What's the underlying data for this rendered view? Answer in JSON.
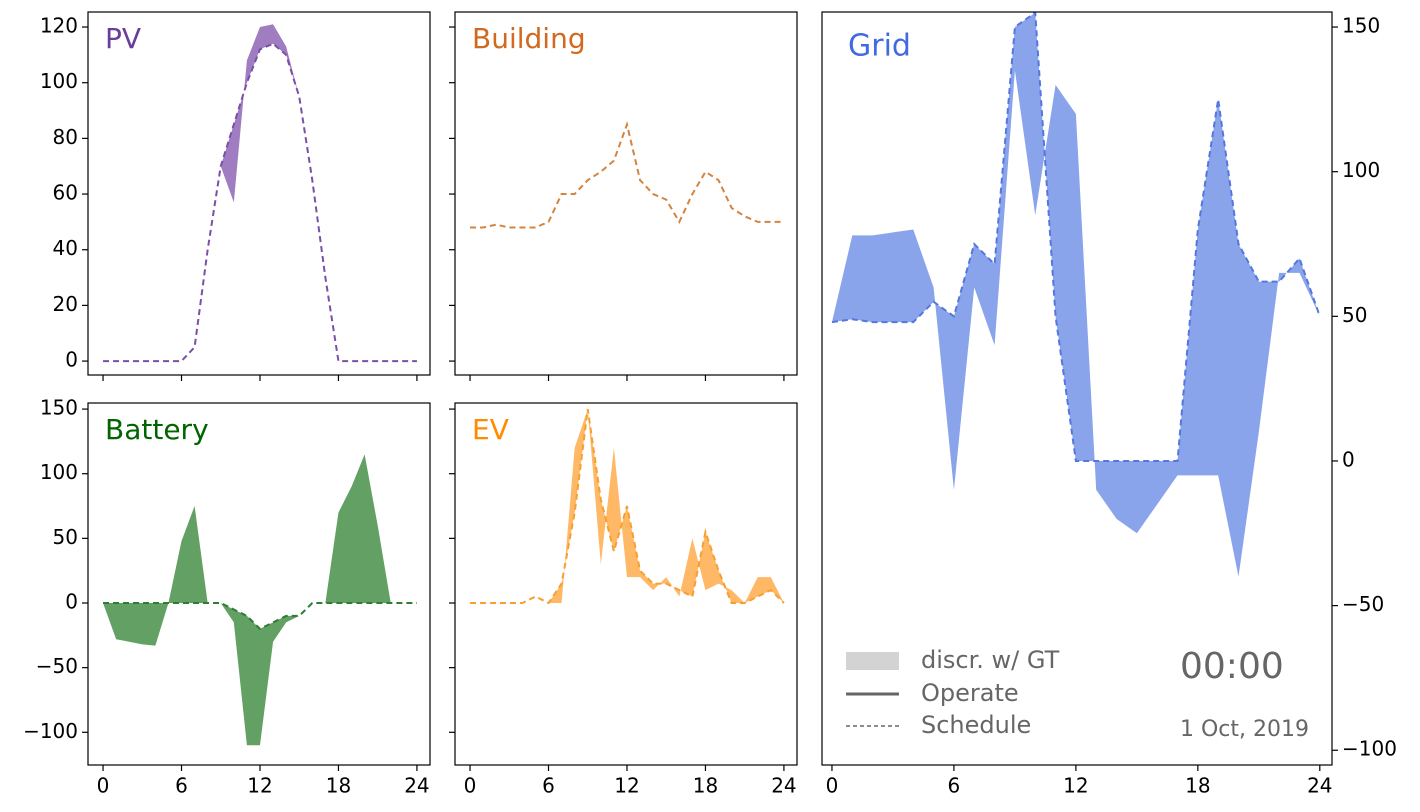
{
  "chart_data": [
    {
      "type": "band-line",
      "title": "PV",
      "title_color": "#6a3d9a",
      "line_color": "#7b4fa8",
      "fill_color": "#a07cc0",
      "x": [
        0,
        1,
        2,
        3,
        4,
        5,
        6,
        7,
        8,
        9,
        10,
        11,
        12,
        13,
        14,
        15,
        16,
        17,
        18,
        19,
        20,
        21,
        22,
        23,
        24
      ],
      "schedule": [
        0,
        0,
        0,
        0,
        0,
        0,
        0,
        5,
        40,
        70,
        85,
        100,
        112,
        114,
        110,
        95,
        65,
        30,
        0,
        0,
        0,
        0,
        0,
        0,
        0
      ],
      "ground_truth": [
        0,
        0,
        0,
        0,
        0,
        0,
        0,
        5,
        40,
        70,
        57,
        108,
        120,
        121,
        113,
        95,
        65,
        30,
        0,
        0,
        0,
        0,
        0,
        0,
        0
      ],
      "xlim": [
        -1.15,
        25
      ],
      "xticks": [
        0,
        6,
        12,
        18,
        24
      ],
      "xtick_labels": false,
      "ylim": [
        -5,
        125.4
      ],
      "yticks": [
        0,
        20,
        40,
        60,
        80,
        100,
        120
      ],
      "ytick_labels": true
    },
    {
      "type": "band-line",
      "title": "Building",
      "title_color": "#d2691e",
      "line_color": "#d4843f",
      "fill_color": "#e8b080",
      "x": [
        0,
        1,
        2,
        3,
        4,
        5,
        6,
        7,
        8,
        9,
        10,
        11,
        12,
        13,
        14,
        15,
        16,
        17,
        18,
        19,
        20,
        21,
        22,
        23,
        24
      ],
      "schedule": [
        48,
        48,
        49,
        48,
        48,
        48,
        50,
        60,
        60,
        65,
        68,
        72,
        85,
        65,
        60,
        58,
        50,
        60,
        68,
        65,
        55,
        52,
        50,
        50,
        50
      ],
      "xlim": [
        -1.15,
        25
      ],
      "xticks": [
        0,
        6,
        12,
        18,
        24
      ],
      "xtick_labels": false,
      "ylim": [
        -5,
        125.4
      ],
      "yticks": [
        0,
        20,
        40,
        60,
        80,
        100,
        120
      ],
      "ytick_labels": false
    },
    {
      "type": "band-line",
      "title": "Battery",
      "title_color": "#006400",
      "line_color": "#2e7d32",
      "fill_color": "#63a063",
      "x": [
        0,
        1,
        2,
        3,
        4,
        5,
        6,
        7,
        8,
        9,
        10,
        11,
        12,
        13,
        14,
        15,
        16,
        17,
        18,
        19,
        20,
        21,
        22,
        23,
        24
      ],
      "schedule": [
        0,
        0,
        0,
        0,
        0,
        0,
        0,
        0,
        0,
        0,
        -5,
        -10,
        -20,
        -15,
        -10,
        -10,
        0,
        0,
        0,
        0,
        0,
        0,
        0,
        0,
        0
      ],
      "ground_truth": [
        0,
        -28,
        -30,
        -32,
        -33,
        0,
        48,
        75,
        0,
        0,
        -15,
        -110,
        -110,
        -30,
        -15,
        -10,
        0,
        0,
        70,
        90,
        115,
        60,
        0,
        0,
        0
      ],
      "xlim": [
        -1.15,
        25
      ],
      "xticks": [
        0,
        6,
        12,
        18,
        24
      ],
      "xtick_labels": true,
      "ylim": [
        -125.3,
        154.7
      ],
      "yticks": [
        {
          "value": -100,
          "label": "−100"
        },
        {
          "value": -50,
          "label": "−50"
        },
        0,
        50,
        100,
        150
      ],
      "ytick_labels": true
    },
    {
      "type": "band-line",
      "title": "EV",
      "title_color": "#ff8c00",
      "line_color": "#f5a030",
      "fill_color": "#ffb866",
      "x": [
        0,
        1,
        2,
        3,
        4,
        5,
        6,
        7,
        8,
        9,
        10,
        11,
        12,
        13,
        14,
        15,
        16,
        17,
        18,
        19,
        20,
        21,
        22,
        23,
        24
      ],
      "schedule": [
        0,
        0,
        0,
        0,
        0,
        5,
        0,
        15,
        70,
        150,
        80,
        40,
        75,
        25,
        15,
        15,
        10,
        5,
        55,
        25,
        0,
        0,
        5,
        10,
        0
      ],
      "ground_truth": [
        0,
        0,
        0,
        0,
        0,
        5,
        0,
        0,
        120,
        150,
        30,
        120,
        20,
        20,
        10,
        20,
        5,
        50,
        10,
        15,
        10,
        0,
        20,
        20,
        0
      ],
      "xlim": [
        -1.15,
        25
      ],
      "xticks": [
        0,
        6,
        12,
        18,
        24
      ],
      "xtick_labels": true,
      "ylim": [
        -125.3,
        154.7
      ],
      "yticks": [
        -100,
        -50,
        0,
        50,
        100,
        150
      ],
      "ytick_labels": false
    },
    {
      "type": "band-line",
      "title": "Grid",
      "title_color": "#4169e1",
      "line_color": "#5577dd",
      "fill_color": "#8aa4ec",
      "x": [
        0,
        1,
        2,
        3,
        4,
        5,
        6,
        7,
        8,
        9,
        10,
        11,
        12,
        13,
        14,
        15,
        16,
        17,
        18,
        19,
        20,
        21,
        22,
        23,
        24
      ],
      "schedule": [
        48,
        49,
        48,
        48,
        48,
        55,
        50,
        75,
        68,
        150,
        155,
        50,
        0,
        0,
        0,
        0,
        0,
        0,
        80,
        125,
        75,
        62,
        62,
        70,
        50
      ],
      "ground_truth": [
        48,
        78,
        78,
        79,
        80,
        60,
        -10,
        60,
        40,
        135,
        85,
        130,
        120,
        -10,
        -20,
        -25,
        -15,
        -5,
        -5,
        -5,
        -40,
        10,
        65,
        65,
        50
      ],
      "xlim": [
        -0.49,
        24.6
      ],
      "xticks": [
        0,
        6,
        12,
        18,
        24
      ],
      "xtick_labels": true,
      "ylim": [
        -105.1,
        155.2
      ],
      "yticks": [
        {
          "value": -100,
          "label": "−100"
        },
        {
          "value": -50,
          "label": "−50"
        },
        0,
        50,
        100,
        150
      ],
      "ytick_labels": true,
      "yaxis_side": "right",
      "legend": [
        {
          "label": "discr. w/ GT",
          "color": "#d3d3d3"
        },
        {
          "label": "Operate",
          "color": "#666666"
        },
        {
          "label": "Schedule",
          "color": "#666666"
        }
      ],
      "time": "00:00",
      "date": "1 Oct, 2019"
    }
  ]
}
